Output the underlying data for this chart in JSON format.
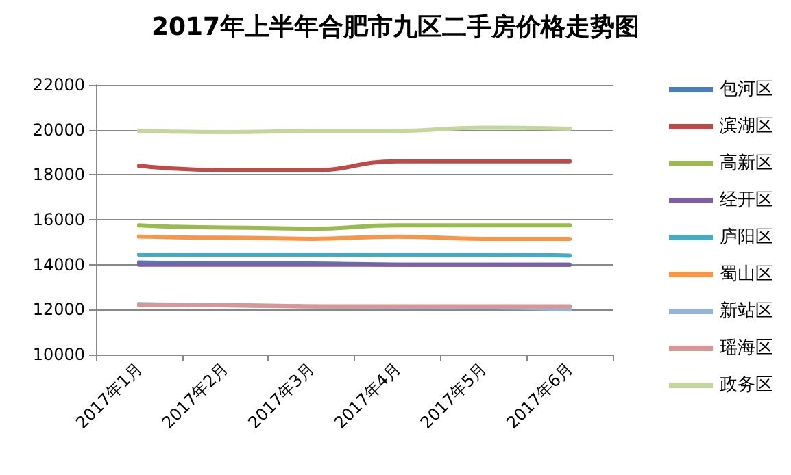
{
  "chart_data": {
    "type": "line",
    "title": "2017年上半年合肥市九区二手房价格走势图",
    "categories": [
      "2017年1月",
      "2017年2月",
      "2017年3月",
      "2017年4月",
      "2017年5月",
      "2017年6月"
    ],
    "series": [
      {
        "name": "包河区",
        "color": "#4a7ebb",
        "values": [
          14100,
          14050,
          14050,
          14000,
          14000,
          14000
        ]
      },
      {
        "name": "滨湖区",
        "color": "#be4b48",
        "values": [
          18400,
          18200,
          18200,
          18600,
          18600,
          18600
        ]
      },
      {
        "name": "高新区",
        "color": "#98b954",
        "values": [
          15750,
          15650,
          15600,
          15750,
          15750,
          15750
        ]
      },
      {
        "name": "经开区",
        "color": "#7d60a0",
        "values": [
          14000,
          14000,
          14000,
          14000,
          14000,
          14000
        ]
      },
      {
        "name": "庐阳区",
        "color": "#46aac5",
        "values": [
          14450,
          14450,
          14450,
          14450,
          14450,
          14400
        ]
      },
      {
        "name": "蜀山区",
        "color": "#f79646",
        "values": [
          15250,
          15200,
          15150,
          15250,
          15150,
          15150
        ]
      },
      {
        "name": "新站区",
        "color": "#95b3d7",
        "values": [
          12250,
          null,
          null,
          null,
          12100,
          12000
        ]
      },
      {
        "name": "瑶海区",
        "color": "#d99694",
        "values": [
          12200,
          12200,
          12150,
          12150,
          12150,
          12150
        ]
      },
      {
        "name": "政务区",
        "color": "#c3d69b",
        "values": [
          19950,
          19900,
          19950,
          19950,
          20100,
          20050
        ]
      }
    ],
    "ylim": [
      10000,
      22000
    ],
    "yticks": [
      10000,
      12000,
      14000,
      16000,
      18000,
      20000,
      22000
    ],
    "grid": "y",
    "legend": "right",
    "marker": "none",
    "line_style": "solid"
  }
}
